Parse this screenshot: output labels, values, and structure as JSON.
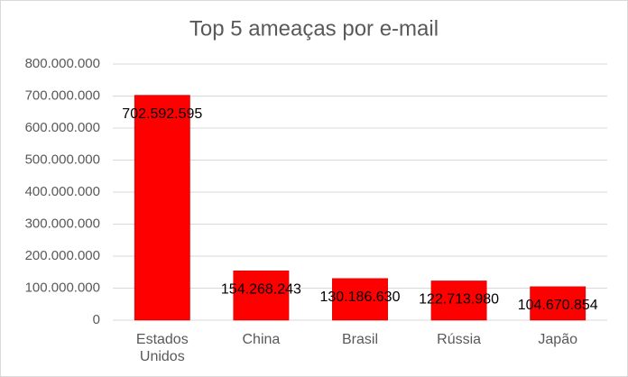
{
  "chart_data": {
    "type": "bar",
    "title": "Top 5 ameaças por e-mail",
    "categories": [
      "Estados Unidos",
      "China",
      "Brasil",
      "Rússia",
      "Japão"
    ],
    "values": [
      702592595,
      154268243,
      130186630,
      122713980,
      104670854
    ],
    "value_labels": [
      "702.592.595",
      "154.268.243",
      "130.186.630",
      "122.713.980",
      "104.670.854"
    ],
    "color": "#ff0000",
    "ylim": [
      0,
      800000000
    ],
    "yticks": [
      0,
      {
        "value": 100000000,
        "label": "100.000.000"
      },
      {
        "value": 200000000,
        "label": "200.000.000"
      },
      {
        "value": 300000000,
        "label": "300.000.000"
      },
      {
        "value": 400000000,
        "label": "400.000.000"
      },
      {
        "value": 500000000,
        "label": "500.000.000"
      },
      {
        "value": 600000000,
        "label": "600.000.000"
      },
      {
        "value": 700000000,
        "label": "700.000.000"
      },
      {
        "value": 800000000,
        "label": "800.000.000"
      }
    ],
    "grid": true
  }
}
